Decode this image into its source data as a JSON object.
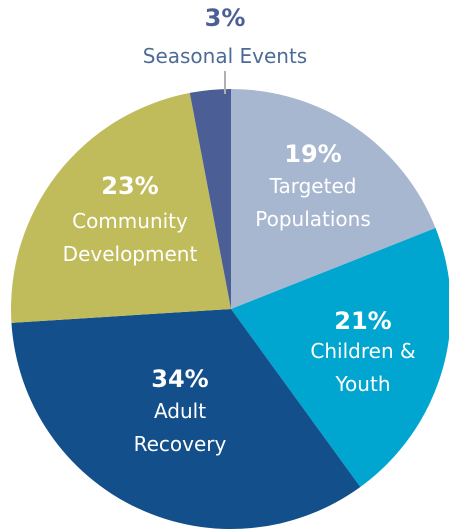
{
  "chart_data": {
    "type": "pie",
    "categories": [
      "Targeted Populations",
      "Children & Youth",
      "Adult Recovery",
      "Community Development",
      "Seasonal Events"
    ],
    "values": [
      19,
      21,
      34,
      23,
      3
    ],
    "value_labels": [
      "19%",
      "21%",
      "34%",
      "23%",
      "3%"
    ],
    "colors": [
      "#a7b7d0",
      "#00a6cf",
      "#134f8b",
      "#c1bc5b",
      "#4b5f96"
    ]
  }
}
